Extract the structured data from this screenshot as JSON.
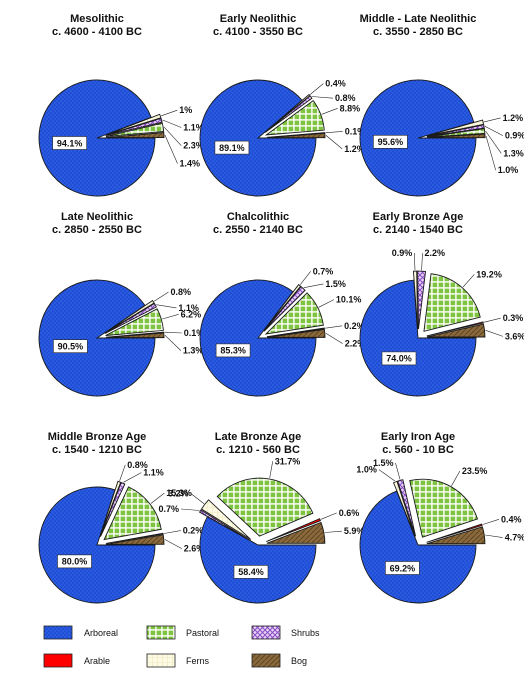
{
  "colors": {
    "Arboreal": "#1f4fd8",
    "Arable": "#ff0000",
    "Pastoral": "#7fc441",
    "Ferns": "#fdfbe4",
    "Shrubs": "#a56ad6",
    "Bog": "#8a6a3c"
  },
  "legend": {
    "items": [
      "Arboreal",
      "Pastoral",
      "Shrubs",
      "Arable",
      "Ferns",
      "Bog"
    ]
  },
  "chart_data": [
    {
      "type": "pie",
      "title": "Mesolithic",
      "subtitle": "c. 4600 - 4100 BC",
      "slices": [
        {
          "category": "Arboreal",
          "value": 94.1,
          "label": "94.1%"
        },
        {
          "category": "Ferns",
          "value": 1.0,
          "label": "1%"
        },
        {
          "category": "Shrubs",
          "value": 1.1,
          "label": "1.1%"
        },
        {
          "category": "Pastoral",
          "value": 2.3,
          "label": "2.3%"
        },
        {
          "category": "Bog",
          "value": 1.4,
          "label": "1.4%"
        }
      ]
    },
    {
      "type": "pie",
      "title": "Early Neolithic",
      "subtitle": "c. 4100 - 3550 BC",
      "slices": [
        {
          "category": "Arboreal",
          "value": 89.1,
          "label": "89.1%"
        },
        {
          "category": "Ferns",
          "value": 0.4,
          "label": "0.4%"
        },
        {
          "category": "Shrubs",
          "value": 0.8,
          "label": "0.8%"
        },
        {
          "category": "Pastoral",
          "value": 8.8,
          "label": "8.8%"
        },
        {
          "category": "Arable",
          "value": 0.1,
          "label": "0.1%"
        },
        {
          "category": "Bog",
          "value": 1.2,
          "label": "1.2%"
        }
      ]
    },
    {
      "type": "pie",
      "title": "Middle - Late Neolithic",
      "subtitle": "c. 3550 - 2850 BC",
      "slices": [
        {
          "category": "Arboreal",
          "value": 95.6,
          "label": "95.6%"
        },
        {
          "category": "Ferns",
          "value": 1.2,
          "label": "1.2%"
        },
        {
          "category": "Shrubs",
          "value": 0.9,
          "label": "0.9%"
        },
        {
          "category": "Pastoral",
          "value": 1.3,
          "label": "1.3%"
        },
        {
          "category": "Bog",
          "value": 1.0,
          "label": "1.0%"
        }
      ]
    },
    {
      "type": "pie",
      "title": "Late Neolithic",
      "subtitle": "c. 2850 - 2550 BC",
      "slices": [
        {
          "category": "Arboreal",
          "value": 90.5,
          "label": "90.5%"
        },
        {
          "category": "Ferns",
          "value": 0.8,
          "label": "0.8%"
        },
        {
          "category": "Shrubs",
          "value": 1.1,
          "label": "1.1%"
        },
        {
          "category": "Pastoral",
          "value": 6.2,
          "label": "6.2%"
        },
        {
          "category": "Arable",
          "value": 0.1,
          "label": "0.1%"
        },
        {
          "category": "Bog",
          "value": 1.3,
          "label": "1.3%"
        }
      ]
    },
    {
      "type": "pie",
      "title": "Chalcolithic",
      "subtitle": "c. 2550 - 2140 BC",
      "slices": [
        {
          "category": "Arboreal",
          "value": 85.3,
          "label": "85.3%"
        },
        {
          "category": "Ferns",
          "value": 0.7,
          "label": "0.7%"
        },
        {
          "category": "Shrubs",
          "value": 1.5,
          "label": "1.5%"
        },
        {
          "category": "Pastoral",
          "value": 10.1,
          "label": "10.1%"
        },
        {
          "category": "Arable",
          "value": 0.2,
          "label": "0.2%"
        },
        {
          "category": "Bog",
          "value": 2.2,
          "label": "2.2%"
        }
      ]
    },
    {
      "type": "pie",
      "title": "Early Bronze Age",
      "subtitle": "c. 2140 - 1540 BC",
      "slices": [
        {
          "category": "Arboreal",
          "value": 74.0,
          "label": "74.0%"
        },
        {
          "category": "Ferns",
          "value": 0.9,
          "label": "0.9%"
        },
        {
          "category": "Shrubs",
          "value": 2.2,
          "label": "2.2%"
        },
        {
          "category": "Pastoral",
          "value": 19.2,
          "label": "19.2%"
        },
        {
          "category": "Arable",
          "value": 0.3,
          "label": "0.3%"
        },
        {
          "category": "Bog",
          "value": 3.6,
          "label": "3.6%"
        }
      ]
    },
    {
      "type": "pie",
      "title": "Middle Bronze Age",
      "subtitle": "c. 1540 - 1210 BC",
      "slices": [
        {
          "category": "Arboreal",
          "value": 80.0,
          "label": "80.0%"
        },
        {
          "category": "Ferns",
          "value": 0.8,
          "label": "0.8%"
        },
        {
          "category": "Shrubs",
          "value": 1.1,
          "label": "1.1%"
        },
        {
          "category": "Pastoral",
          "value": 15.3,
          "label": "15.3%"
        },
        {
          "category": "Arable",
          "value": 0.2,
          "label": "0.2%"
        },
        {
          "category": "Bog",
          "value": 2.6,
          "label": "2.6%"
        }
      ]
    },
    {
      "type": "pie",
      "title": "Late Bronze Age",
      "subtitle": "c. 1210 - 560 BC",
      "slices": [
        {
          "category": "Arboreal",
          "value": 58.4,
          "label": "58.4%"
        },
        {
          "category": "Shrubs",
          "value": 0.7,
          "label": "0.7%"
        },
        {
          "category": "Ferns",
          "value": 3.2,
          "label": "3.2%"
        },
        {
          "category": "Pastoral",
          "value": 31.7,
          "label": "31.7%"
        },
        {
          "category": "Arable",
          "value": 0.6,
          "label": "0.6%"
        },
        {
          "category": "Bog",
          "value": 5.9,
          "label": "5.9%"
        }
      ]
    },
    {
      "type": "pie",
      "title": "Early Iron Age",
      "subtitle": "c. 560 - 10 BC",
      "slices": [
        {
          "category": "Arboreal",
          "value": 69.2,
          "label": "69.2%"
        },
        {
          "category": "Ferns",
          "value": 1.0,
          "label": "1.0%"
        },
        {
          "category": "Shrubs",
          "value": 1.5,
          "label": "1.5%"
        },
        {
          "category": "Pastoral",
          "value": 23.5,
          "label": "23.5%"
        },
        {
          "category": "Arable",
          "value": 0.4,
          "label": "0.4%"
        },
        {
          "category": "Bog",
          "value": 4.7,
          "label": "4.7%"
        }
      ]
    }
  ]
}
